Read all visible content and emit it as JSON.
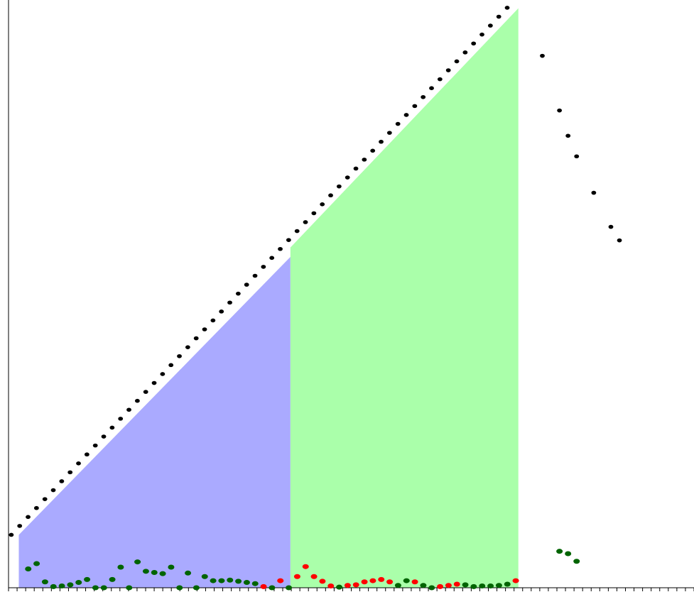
{
  "chart_data": {
    "type": "scatter",
    "title": "",
    "xlabel": "",
    "ylabel": "",
    "xlim": [
      0,
      80
    ],
    "ylim": [
      0,
      100
    ],
    "grid": false,
    "legend": "none",
    "tick_count": 80,
    "x_step": 0.981,
    "colors": {
      "region_a": "#aaaaff",
      "region_b": "#aaffaa",
      "black": "#000000",
      "green": "#006400",
      "red": "#ff0000",
      "axis": "#000000"
    },
    "regions": [
      {
        "x0": 1.2,
        "x1": 32.9,
        "y0": 9.0,
        "y1": 56.3,
        "color_key": "region_a"
      },
      {
        "x0": 32.9,
        "x1": 59.5,
        "y0": 57.9,
        "y1": 98.6,
        "color_key": "region_b"
      }
    ],
    "black_series": {
      "start_x": 0.32,
      "start_y": 9.0,
      "step_y": 1.52,
      "count": 60,
      "extra": [
        {
          "x": 62.3,
          "y": 90.5
        },
        {
          "x": 64.3,
          "y": 81.2
        },
        {
          "x": 65.3,
          "y": 76.9
        },
        {
          "x": 66.3,
          "y": 73.4
        },
        {
          "x": 68.3,
          "y": 67.2
        },
        {
          "x": 70.3,
          "y": 61.4
        },
        {
          "x": 71.3,
          "y": 59.1
        }
      ]
    },
    "small_series": {
      "start_x": 2.3,
      "values": [
        3.2,
        4.1,
        1.0,
        0.2,
        0.3,
        0.5,
        0.9,
        1.4,
        0.0,
        0.0,
        1.4,
        3.5,
        0.0,
        4.4,
        2.8,
        2.6,
        2.4,
        3.5,
        0.0,
        2.5,
        0.0,
        1.9,
        1.2,
        1.2,
        1.3,
        1.1,
        0.9,
        0.7,
        0.2,
        0.0,
        1.2,
        0.0,
        1.9,
        3.6,
        1.9,
        1.1,
        0.3,
        0.1,
        0.4,
        0.5,
        1.0,
        1.2,
        1.4,
        1.0,
        0.4,
        1.2,
        1.0,
        0.4,
        0.0,
        0.2,
        0.4,
        0.6,
        0.5,
        0.2,
        0.3,
        0.3,
        0.4,
        0.6,
        1.2
      ],
      "colors": [
        "green",
        "green",
        "green",
        "green",
        "green",
        "green",
        "green",
        "green",
        "green",
        "green",
        "green",
        "green",
        "green",
        "green",
        "green",
        "green",
        "green",
        "green",
        "green",
        "green",
        "green",
        "green",
        "green",
        "green",
        "green",
        "green",
        "green",
        "green",
        "red",
        "green",
        "red",
        "green",
        "red",
        "red",
        "red",
        "red",
        "red",
        "green",
        "red",
        "red",
        "red",
        "red",
        "red",
        "red",
        "green",
        "green",
        "red",
        "green",
        "green",
        "red",
        "red",
        "red",
        "green",
        "green",
        "green",
        "green",
        "green",
        "green",
        "red"
      ],
      "extra": [
        {
          "x": 64.3,
          "y": 6.2,
          "color": "green"
        },
        {
          "x": 65.3,
          "y": 5.8,
          "color": "green"
        },
        {
          "x": 66.3,
          "y": 4.5,
          "color": "green"
        }
      ]
    }
  }
}
